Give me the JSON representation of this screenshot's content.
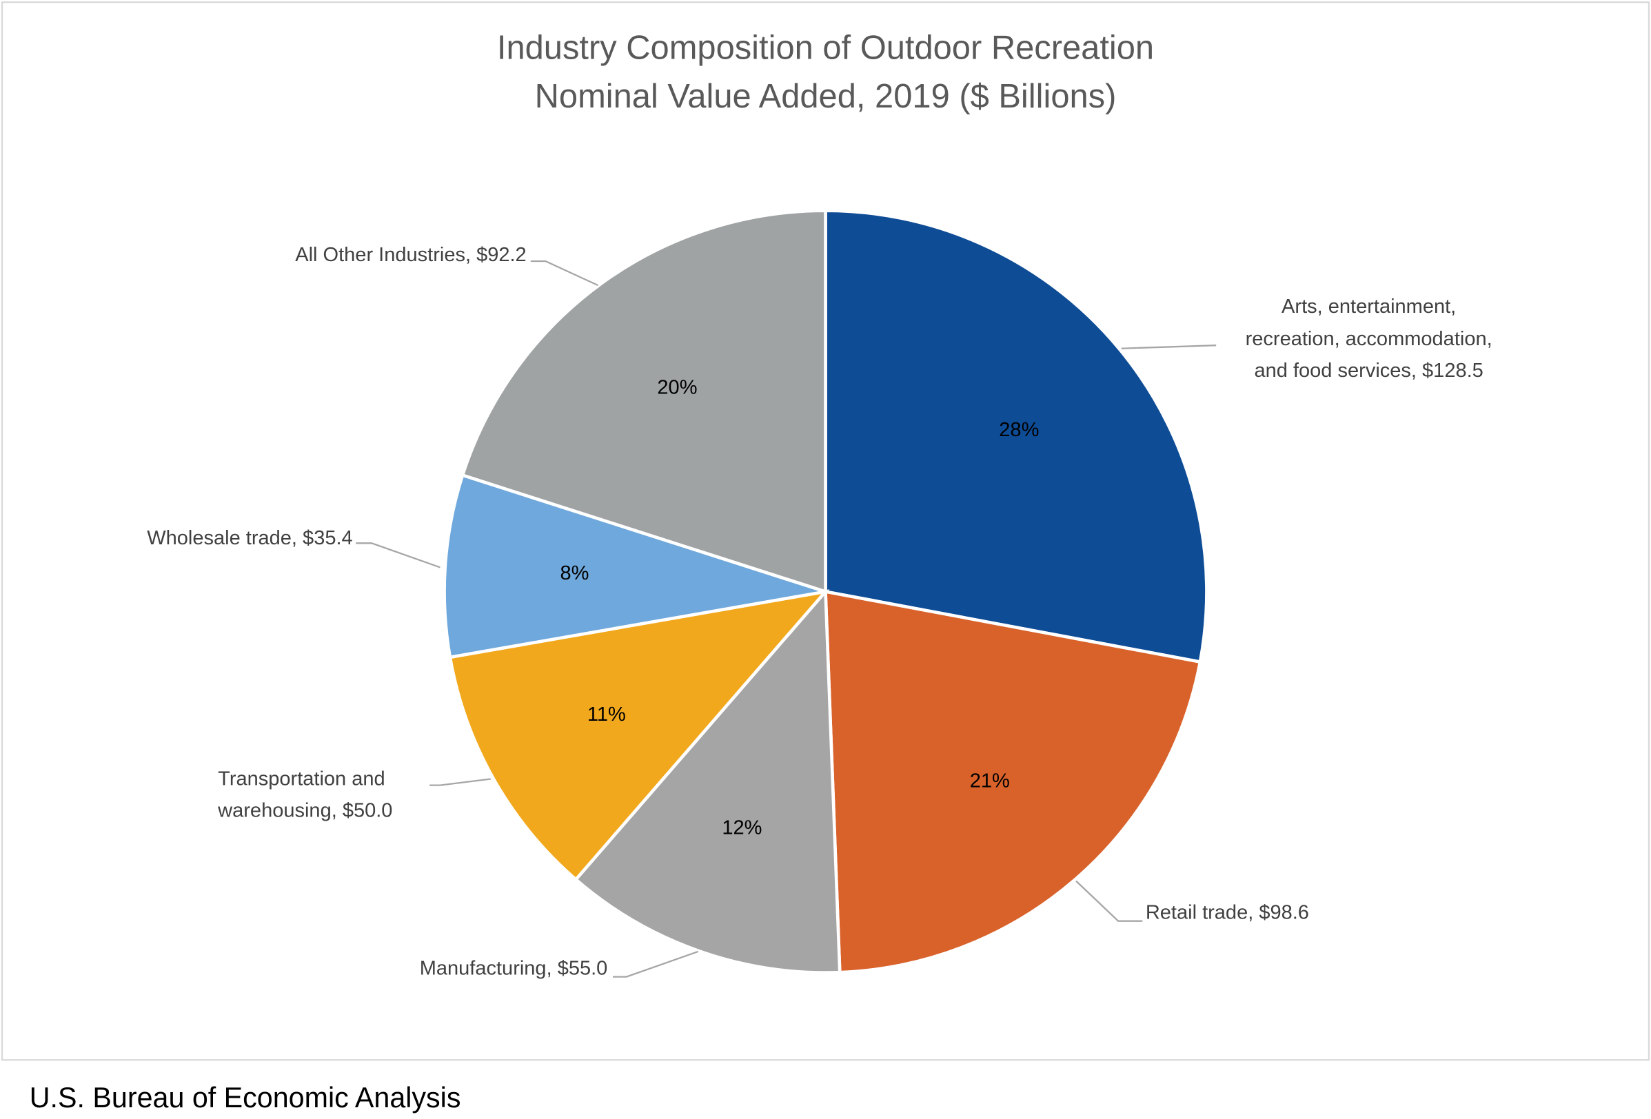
{
  "chart_data": {
    "type": "pie",
    "title": [
      "Industry Composition of Outdoor Recreation",
      "Nominal Value Added, 2019 ($ Billions)"
    ],
    "units": "$ Billions",
    "start_angle_deg": 0,
    "direction": "clockwise",
    "slices": [
      {
        "label": [
          "Arts, entertainment,",
          "recreation, accommodation,",
          "and food services, $128.5"
        ],
        "value": 128.5,
        "percent_label": "28%",
        "color": "#0E4C96"
      },
      {
        "label": [
          "Retail trade, $98.6"
        ],
        "value": 98.6,
        "percent_label": "21%",
        "color": "#D9622B"
      },
      {
        "label": [
          "Manufacturing, $55.0"
        ],
        "value": 55.0,
        "percent_label": "12%",
        "color": "#A5A5A5"
      },
      {
        "label": [
          "Transportation and",
          "warehousing, $50.0"
        ],
        "value": 50.0,
        "percent_label": "11%",
        "color": "#F2A81D"
      },
      {
        "label": [
          "Wholesale trade, $35.4"
        ],
        "value": 35.4,
        "percent_label": "8%",
        "color": "#6FA8DC"
      },
      {
        "label": [
          "All Other Industries, $92.2"
        ],
        "value": 92.2,
        "percent_label": "20%",
        "color": "#A0A3A4"
      }
    ]
  },
  "footer": "U.S. Bureau of Economic Analysis"
}
